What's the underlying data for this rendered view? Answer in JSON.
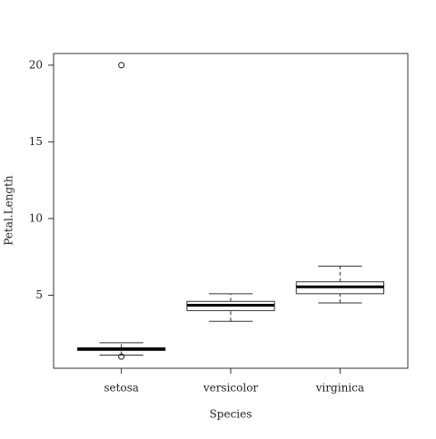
{
  "chart_data": {
    "type": "boxplot",
    "x_label": "Species",
    "y_label": "Petal.Length",
    "categories": [
      "setosa",
      "versicolor",
      "virginica"
    ],
    "whisker_low": [
      1.1,
      3.3,
      4.5
    ],
    "q1": [
      1.4,
      4.0,
      5.1
    ],
    "median": [
      1.5,
      4.35,
      5.55
    ],
    "q3": [
      1.575,
      4.6,
      5.875
    ],
    "whisker_high": [
      1.9,
      5.1,
      6.9
    ],
    "outliers": [
      [
        20,
        1.0
      ],
      [],
      []
    ],
    "ylim": [
      0.24,
      20.76
    ],
    "yticks": [
      5,
      10,
      15,
      20
    ]
  }
}
